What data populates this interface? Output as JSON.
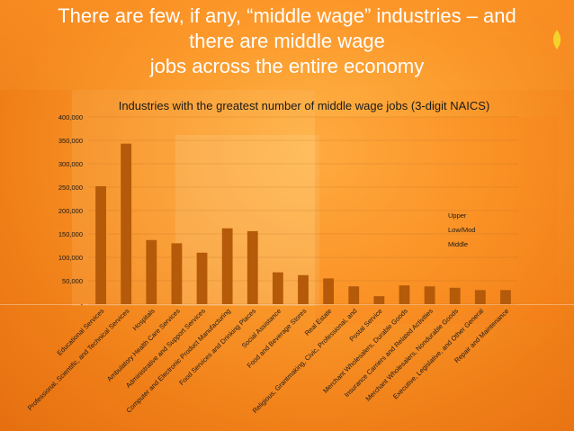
{
  "slide_title_lines": [
    "There are few, if any, “middle wage” industries – and",
    "there are middle wage",
    "jobs across the entire economy"
  ],
  "colors": {
    "bar": "#b45a09",
    "title_text": "#ffffff",
    "chart_text": "#1a1a1a"
  },
  "chart_data": {
    "type": "bar",
    "title": "Industries with the greatest number of middle wage jobs (3-digit NAICS)",
    "xlabel": "",
    "ylabel": "",
    "ylim": [
      0,
      400000
    ],
    "yticks": [
      0,
      50000,
      100000,
      150000,
      200000,
      250000,
      300000,
      350000,
      400000
    ],
    "ytick_labels": [
      "-",
      "50,000",
      "100,000",
      "150,000",
      "200,000",
      "250,000",
      "300,000",
      "350,000",
      "400,000"
    ],
    "grid": true,
    "legend_position": "right",
    "legend": [
      "Upper",
      "Low/Mod",
      "Middle"
    ],
    "categories": [
      "Educational Services",
      "Professional, Scientific, and Technical Services",
      "Hospitals",
      "Ambulatory Health Care Services",
      "Administrative and Support Services",
      "Computer and Electronic Product Manufacturing",
      "Food Services and Drinking Places",
      "Social Assistance",
      "Food and Beverage Stores",
      "Real Estate",
      "Religious, Grantmaking, Civic, Professional, and",
      "Postal Service",
      "Merchant Wholesalers, Durable Goods",
      "Insurance Carriers and Related Activities",
      "Merchant Wholesalers, Nondurable Goods",
      "Executive, Legislative, and Other General",
      "Repair and Maintenance"
    ],
    "values": [
      252000,
      343000,
      137000,
      130000,
      110000,
      162000,
      156000,
      68000,
      62000,
      55000,
      38000,
      17000,
      40000,
      38000,
      35000,
      30000,
      30000
    ]
  }
}
